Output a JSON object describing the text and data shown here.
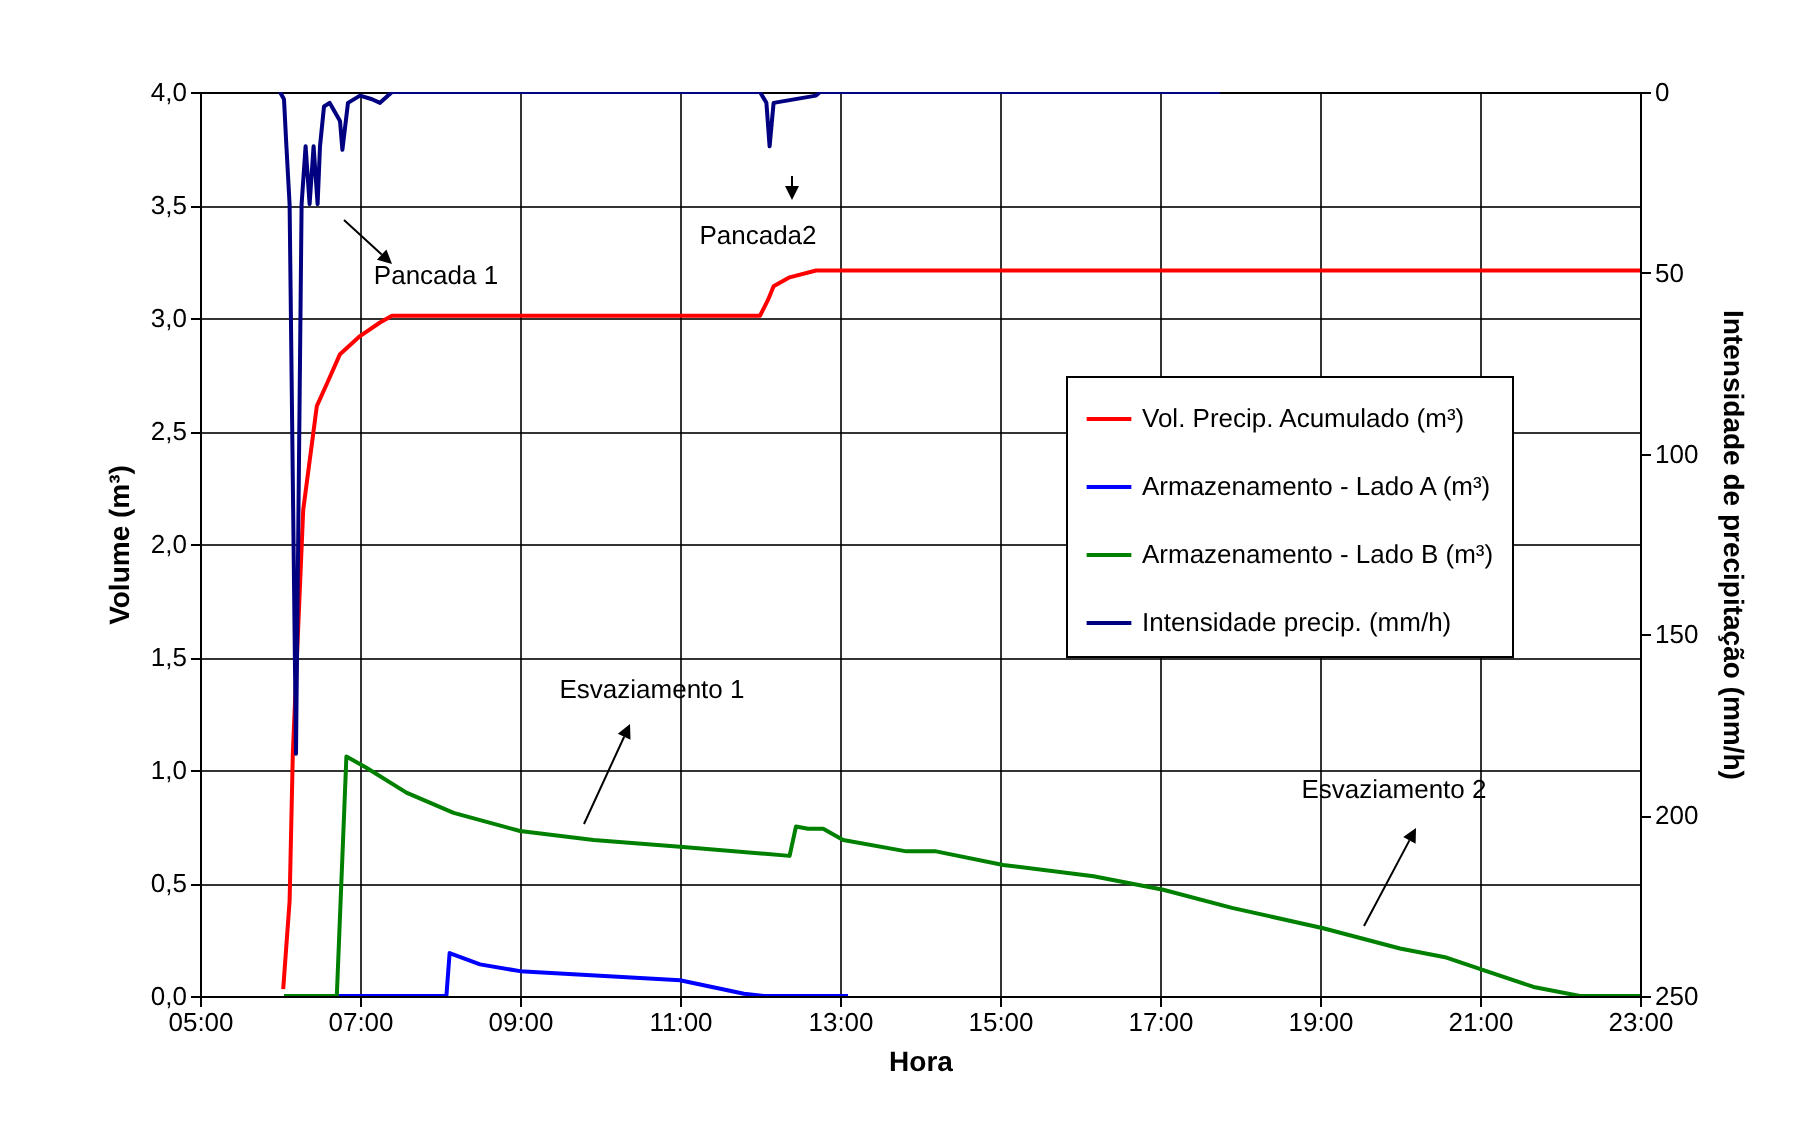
{
  "chart_data": {
    "type": "line",
    "xlabel": "Hora",
    "ylabel": "Volume (m³)",
    "y2label": "Intensidade de precipitação (mm/h)",
    "xlim": [
      5,
      23
    ],
    "xticks": [
      {
        "value": 5,
        "label": "05:00"
      },
      {
        "value": 7,
        "label": "07:00"
      },
      {
        "value": 9,
        "label": "09:00"
      },
      {
        "value": 11,
        "label": "11:00"
      },
      {
        "value": 13,
        "label": "13:00"
      },
      {
        "value": 15,
        "label": "15:00"
      },
      {
        "value": 17,
        "label": "17:00"
      },
      {
        "value": 19,
        "label": "19:00"
      },
      {
        "value": 21,
        "label": "21:00"
      },
      {
        "value": 23,
        "label": "23:00"
      }
    ],
    "ylim": [
      0,
      4
    ],
    "yticks": [
      {
        "value": 0,
        "label": "0,0"
      },
      {
        "value": 0.5,
        "label": "0,5"
      },
      {
        "value": 1,
        "label": "1,0"
      },
      {
        "value": 1.5,
        "label": "1,5"
      },
      {
        "value": 2,
        "label": "2,0"
      },
      {
        "value": 2.5,
        "label": "2,5"
      },
      {
        "value": 3,
        "label": "3,0"
      },
      {
        "value": 3.5,
        "label": "3,5"
      },
      {
        "value": 4,
        "label": "4,0"
      }
    ],
    "y2lim": [
      250,
      0
    ],
    "y2ticks": [
      0,
      50,
      100,
      150,
      200,
      250
    ],
    "grid": true,
    "legend": "right",
    "line_style": "solid",
    "marker": "none",
    "series": [
      {
        "name": "Vol. Precip. Acumulado (m³)",
        "color": "#ff0000",
        "x": [
          6.04,
          6.12,
          6.16,
          6.29,
          6.46,
          6.6,
          6.75,
          7.0,
          7.25,
          7.4,
          12.0,
          12.1,
          12.17,
          12.37,
          12.7,
          23.0
        ],
        "values": [
          0.03,
          0.42,
          1.07,
          2.15,
          2.61,
          2.72,
          2.84,
          2.92,
          2.98,
          3.01,
          3.01,
          3.08,
          3.14,
          3.18,
          3.21,
          3.21
        ]
      },
      {
        "name": "Armazenamento - Lado A (m³)",
        "color": "#0000ff",
        "x": [
          6.71,
          8.08,
          8.12,
          8.5,
          9.0,
          11.0,
          11.8,
          12.05,
          13.1
        ],
        "values": [
          0,
          0,
          0.19,
          0.14,
          0.11,
          0.07,
          0.01,
          0,
          0
        ]
      },
      {
        "name": "Armazenamento - Lado B (m³)",
        "color": "#008000",
        "x": [
          6.05,
          6.71,
          6.83,
          7.08,
          7.58,
          8.17,
          9.0,
          9.92,
          11.0,
          12.37,
          12.45,
          12.6,
          12.79,
          13.04,
          13.83,
          14.2,
          15.04,
          16.17,
          17.04,
          17.9,
          19.04,
          20.0,
          20.58,
          21.08,
          21.67,
          22.25,
          23.0
        ],
        "values": [
          0,
          0,
          1.06,
          1.01,
          0.9,
          0.81,
          0.73,
          0.69,
          0.66,
          0.62,
          0.75,
          0.74,
          0.74,
          0.69,
          0.64,
          0.64,
          0.58,
          0.53,
          0.47,
          0.39,
          0.3,
          0.21,
          0.17,
          0.11,
          0.04,
          0,
          0
        ]
      },
      {
        "name": "Intensidade precip. (mm/h)",
        "color": "#000080",
        "axis": "y2",
        "x": [
          6.0,
          6.05,
          6.08,
          6.12,
          6.2,
          6.27,
          6.32,
          6.37,
          6.42,
          6.47,
          6.5,
          6.55,
          6.62,
          6.75,
          6.78,
          6.85,
          7.0,
          7.15,
          7.25,
          7.4,
          12.0,
          12.08,
          12.12,
          12.17,
          12.7,
          12.75,
          17.75
        ],
        "values": [
          0,
          2,
          15,
          31,
          183,
          31,
          15,
          31,
          15,
          31,
          15,
          4,
          3,
          8,
          16,
          3,
          1,
          2,
          3,
          0,
          0,
          3,
          15,
          3,
          1,
          0,
          0
        ]
      }
    ],
    "annotations": [
      "Pancada 1",
      "Pancada2",
      "Esvaziamento 1",
      "Esvaziamento 2"
    ]
  }
}
